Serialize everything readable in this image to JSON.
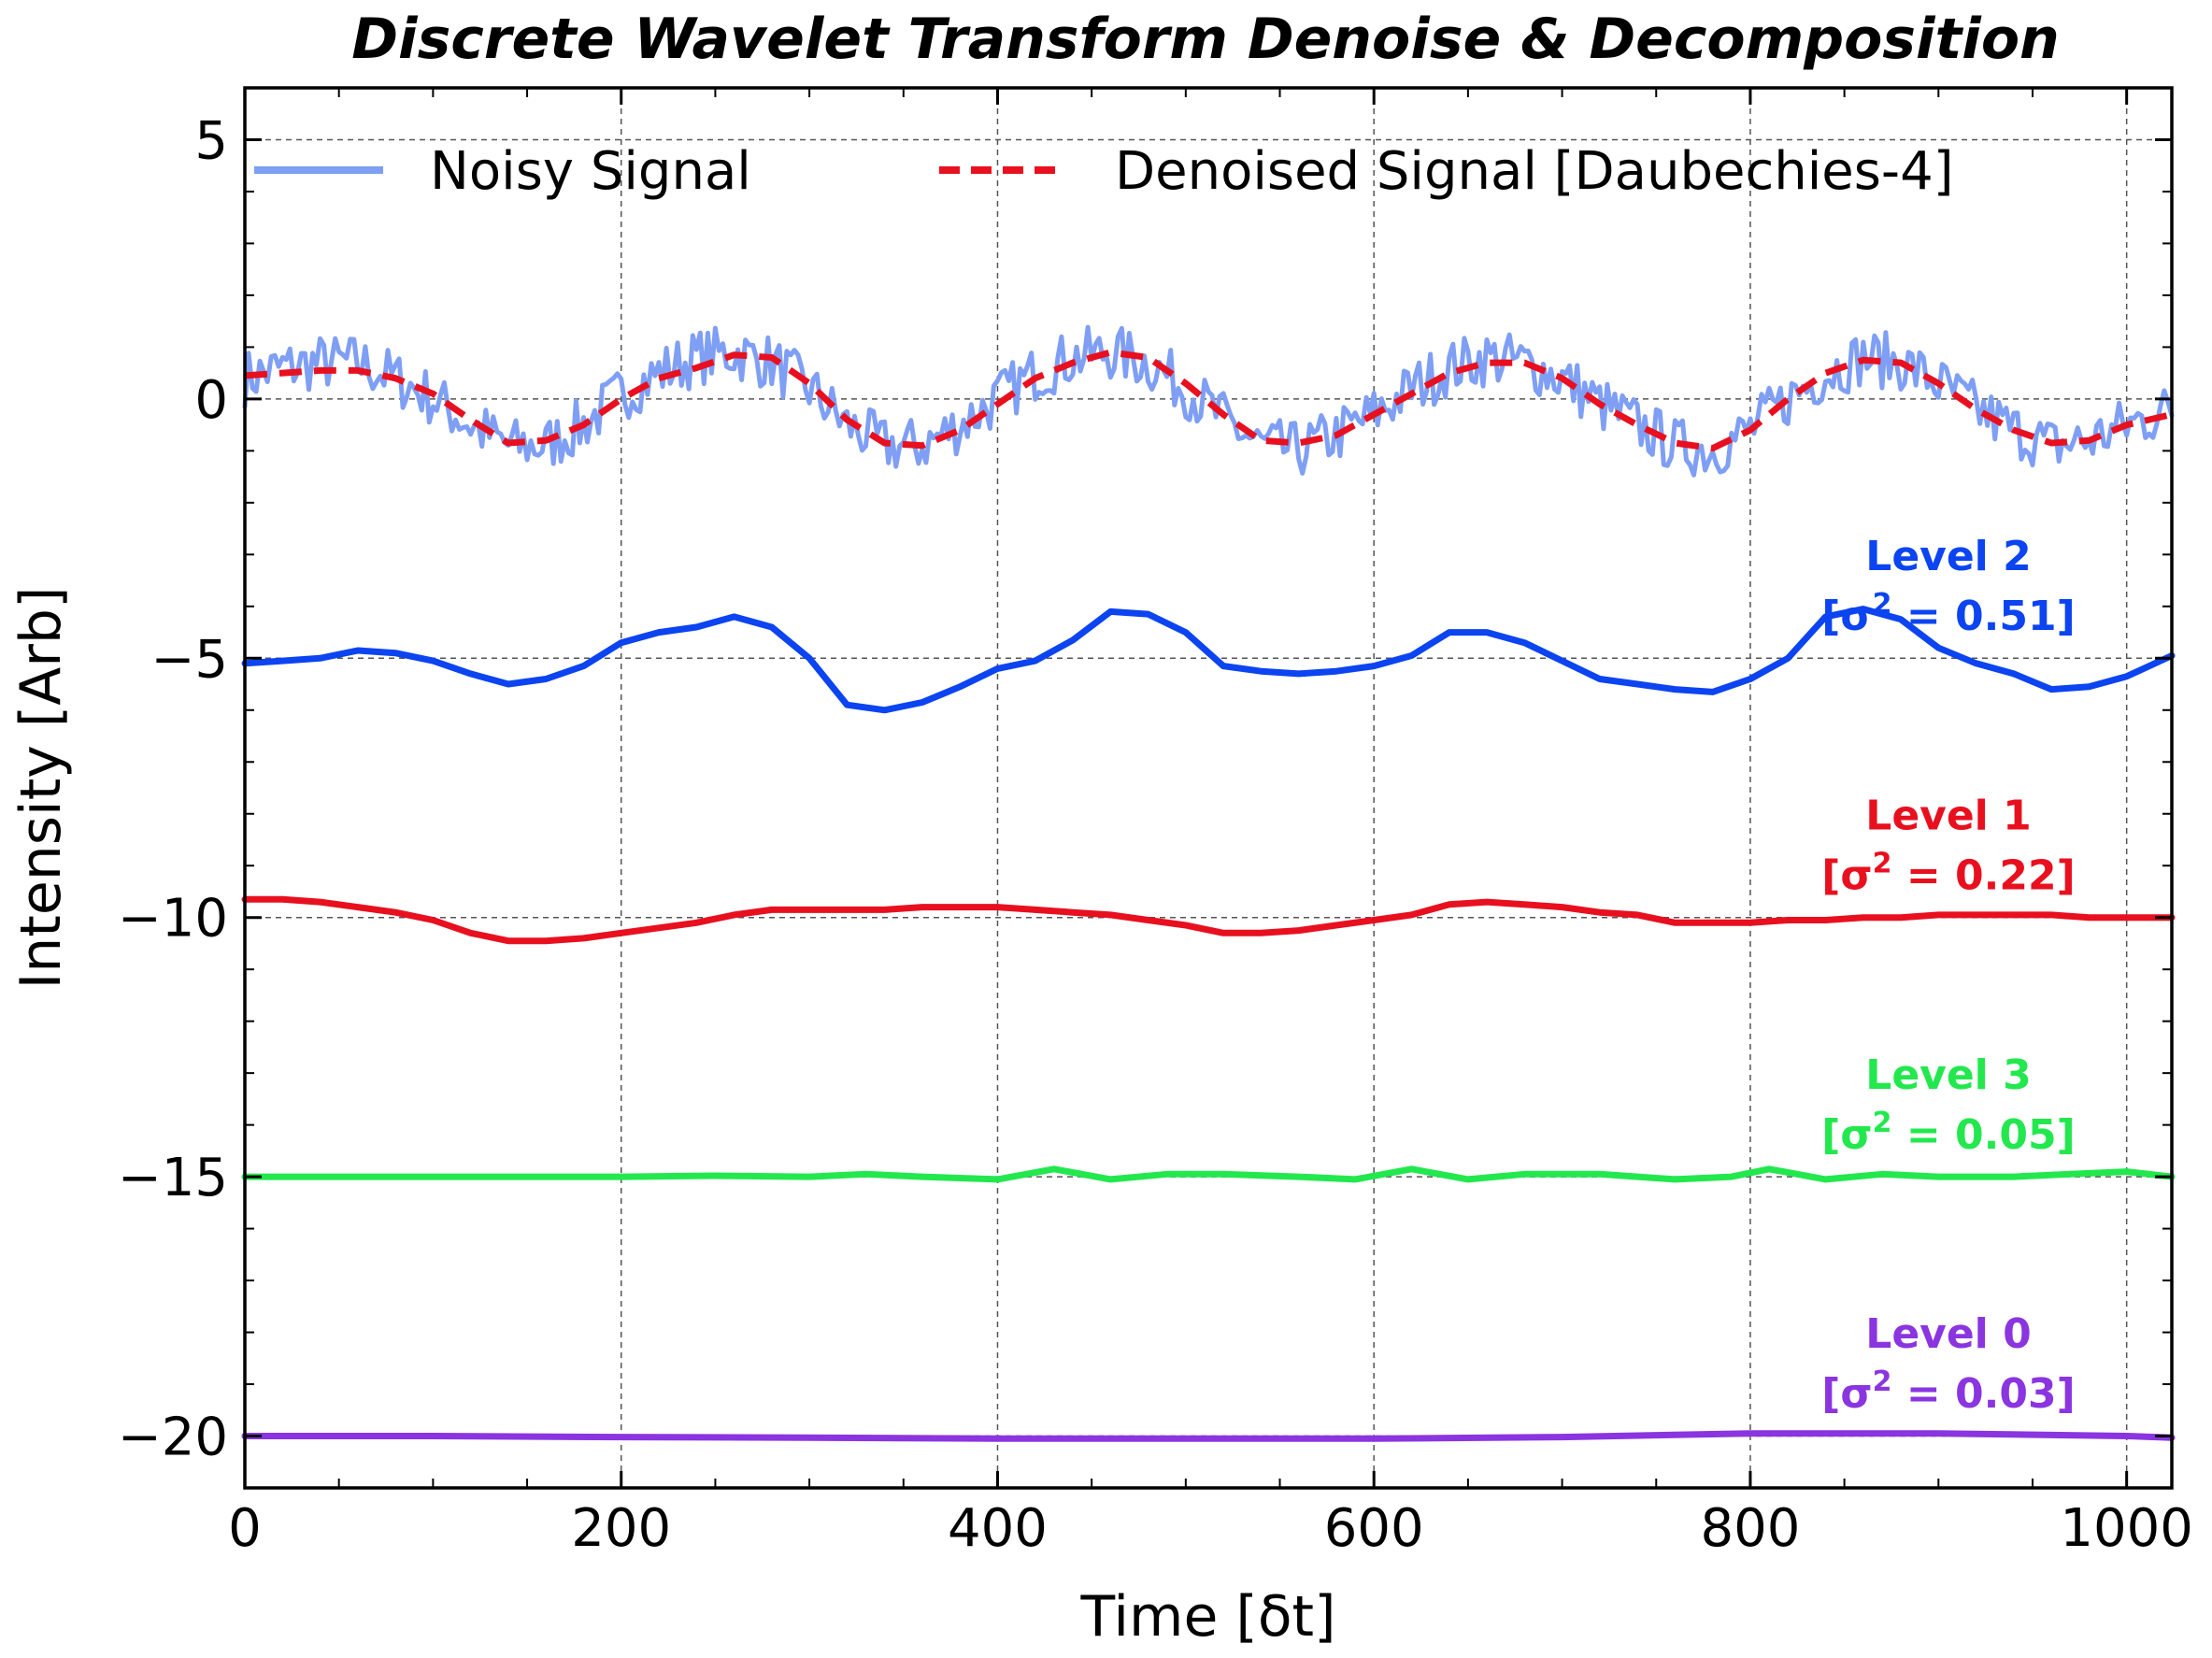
{
  "chart_data": {
    "type": "line",
    "title": "Discrete Wavelet Transform Denoise & Decomposition",
    "xlabel": "Time [δt]",
    "ylabel": "Intensity [Arb]",
    "xlim": [
      0,
      1024
    ],
    "ylim": [
      -21,
      6
    ],
    "xticks": [
      0,
      200,
      400,
      600,
      800,
      1000
    ],
    "yticks": [
      5,
      0,
      -5,
      -10,
      -15,
      -20
    ],
    "xtick_labels": [
      "0",
      "200",
      "400",
      "600",
      "800",
      "1000"
    ],
    "ytick_labels": [
      "5",
      "0",
      "−5",
      "−10",
      "−15",
      "−20"
    ],
    "grid": true,
    "legend_position": "top",
    "legend": [
      {
        "label": "Noisy Signal",
        "color": "#7f9ff5",
        "style": "solid"
      },
      {
        "label": "Denoised Signal [Daubechies-4]",
        "color": "#e8101f",
        "style": "dashed"
      }
    ],
    "series": [
      {
        "name": "Noisy Signal",
        "color": "#7f9ff5",
        "noisy": true,
        "x": [
          0,
          20,
          40,
          60,
          80,
          100,
          120,
          140,
          160,
          180,
          200,
          220,
          240,
          260,
          280,
          300,
          320,
          340,
          360,
          380,
          400,
          420,
          440,
          460,
          480,
          500,
          520,
          540,
          560,
          580,
          600,
          620,
          640,
          660,
          680,
          700,
          720,
          740,
          760,
          780,
          800,
          820,
          840,
          860,
          880,
          900,
          920,
          940,
          960,
          980,
          1000,
          1024
        ],
        "values": [
          0.4,
          0.6,
          0.7,
          0.7,
          0.4,
          0.0,
          -0.5,
          -0.9,
          -0.9,
          -0.5,
          0.1,
          0.5,
          0.8,
          0.9,
          0.7,
          0.2,
          -0.5,
          -0.9,
          -0.9,
          -0.5,
          0.0,
          0.5,
          0.8,
          0.9,
          0.7,
          0.2,
          -0.4,
          -0.9,
          -1.0,
          -0.7,
          -0.3,
          0.2,
          0.6,
          0.8,
          0.7,
          0.4,
          -0.1,
          -0.5,
          -0.9,
          -1.0,
          -0.6,
          0.0,
          0.5,
          0.8,
          0.7,
          0.3,
          -0.2,
          -0.6,
          -0.9,
          -0.8,
          -0.5,
          -0.2
        ]
      },
      {
        "name": "Denoised Signal [Daubechies-4]",
        "color": "#e8101f",
        "x": [
          0,
          20,
          40,
          60,
          80,
          100,
          120,
          140,
          160,
          180,
          200,
          220,
          240,
          260,
          280,
          300,
          320,
          340,
          360,
          380,
          400,
          420,
          440,
          460,
          480,
          500,
          520,
          540,
          560,
          580,
          600,
          620,
          640,
          660,
          680,
          700,
          720,
          740,
          760,
          780,
          800,
          820,
          840,
          860,
          880,
          900,
          920,
          940,
          960,
          980,
          1000,
          1024
        ],
        "values": [
          0.45,
          0.5,
          0.55,
          0.55,
          0.4,
          0.1,
          -0.4,
          -0.85,
          -0.8,
          -0.5,
          0.0,
          0.4,
          0.6,
          0.85,
          0.8,
          0.3,
          -0.4,
          -0.85,
          -0.9,
          -0.6,
          -0.1,
          0.4,
          0.7,
          0.9,
          0.8,
          0.3,
          -0.3,
          -0.8,
          -0.85,
          -0.7,
          -0.3,
          0.1,
          0.5,
          0.7,
          0.7,
          0.4,
          -0.1,
          -0.5,
          -0.85,
          -0.95,
          -0.6,
          0.0,
          0.5,
          0.75,
          0.7,
          0.3,
          -0.2,
          -0.6,
          -0.85,
          -0.8,
          -0.5,
          -0.3
        ]
      },
      {
        "name": "Level 2",
        "color": "#0b44f0",
        "x": [
          0,
          20,
          40,
          60,
          80,
          100,
          120,
          140,
          160,
          180,
          200,
          220,
          240,
          260,
          280,
          300,
          320,
          340,
          360,
          380,
          400,
          420,
          440,
          460,
          480,
          500,
          520,
          540,
          560,
          580,
          600,
          620,
          640,
          660,
          680,
          700,
          720,
          740,
          760,
          780,
          800,
          820,
          840,
          860,
          880,
          900,
          920,
          940,
          960,
          980,
          1000,
          1024
        ],
        "values": [
          -5.1,
          -5.05,
          -5.0,
          -4.85,
          -4.9,
          -5.05,
          -5.3,
          -5.5,
          -5.4,
          -5.15,
          -4.7,
          -4.5,
          -4.4,
          -4.2,
          -4.4,
          -5.0,
          -5.9,
          -6.0,
          -5.85,
          -5.55,
          -5.2,
          -5.05,
          -4.65,
          -4.1,
          -4.15,
          -4.5,
          -5.15,
          -5.25,
          -5.3,
          -5.25,
          -5.15,
          -4.95,
          -4.5,
          -4.5,
          -4.7,
          -5.05,
          -5.4,
          -5.5,
          -5.6,
          -5.65,
          -5.4,
          -5.0,
          -4.2,
          -4.05,
          -4.25,
          -4.8,
          -5.1,
          -5.3,
          -5.6,
          -5.55,
          -5.35,
          -4.95
        ]
      },
      {
        "name": "Level 1",
        "color": "#e8101f",
        "x": [
          0,
          20,
          40,
          60,
          80,
          100,
          120,
          140,
          160,
          180,
          200,
          220,
          240,
          260,
          280,
          300,
          320,
          340,
          360,
          380,
          400,
          420,
          440,
          460,
          480,
          500,
          520,
          540,
          560,
          580,
          600,
          620,
          640,
          660,
          680,
          700,
          720,
          740,
          760,
          780,
          800,
          820,
          840,
          860,
          880,
          900,
          920,
          940,
          960,
          980,
          1000,
          1024
        ],
        "values": [
          -9.65,
          -9.65,
          -9.7,
          -9.8,
          -9.9,
          -10.05,
          -10.3,
          -10.45,
          -10.45,
          -10.4,
          -10.3,
          -10.2,
          -10.1,
          -9.95,
          -9.85,
          -9.85,
          -9.85,
          -9.85,
          -9.8,
          -9.8,
          -9.8,
          -9.85,
          -9.9,
          -9.95,
          -10.05,
          -10.15,
          -10.3,
          -10.3,
          -10.25,
          -10.15,
          -10.05,
          -9.95,
          -9.75,
          -9.7,
          -9.75,
          -9.8,
          -9.9,
          -9.95,
          -10.1,
          -10.1,
          -10.1,
          -10.05,
          -10.05,
          -10.0,
          -10.0,
          -9.95,
          -9.95,
          -9.95,
          -9.95,
          -10.0,
          -10.0,
          -10.0
        ]
      },
      {
        "name": "Level 3",
        "color": "#22e84e",
        "x": [
          0,
          50,
          100,
          150,
          200,
          250,
          300,
          330,
          360,
          400,
          430,
          460,
          490,
          520,
          560,
          590,
          620,
          650,
          680,
          720,
          760,
          790,
          810,
          840,
          870,
          900,
          940,
          970,
          1000,
          1024
        ],
        "values": [
          -15.0,
          -15.0,
          -15.0,
          -15.0,
          -15.0,
          -14.98,
          -15.0,
          -14.95,
          -15.0,
          -15.05,
          -14.85,
          -15.05,
          -14.95,
          -14.95,
          -15.0,
          -15.05,
          -14.85,
          -15.05,
          -14.95,
          -14.95,
          -15.05,
          -15.0,
          -14.85,
          -15.05,
          -14.95,
          -15.0,
          -15.0,
          -14.95,
          -14.9,
          -15.0
        ]
      },
      {
        "name": "Level 0",
        "color": "#8a35e0",
        "x": [
          0,
          100,
          200,
          300,
          400,
          500,
          600,
          700,
          800,
          900,
          1000,
          1024
        ],
        "values": [
          -20.0,
          -20.0,
          -20.02,
          -20.03,
          -20.05,
          -20.05,
          -20.05,
          -20.02,
          -19.95,
          -19.95,
          -20.0,
          -20.03
        ]
      }
    ],
    "annotations": [
      {
        "line1": "Level 2",
        "var": "0.51",
        "color": "#0b44f0",
        "y": -3.3
      },
      {
        "line1": "Level 1",
        "var": "0.22",
        "color": "#e8101f",
        "y": -8.3
      },
      {
        "line1": "Level 3",
        "var": "0.05",
        "color": "#22e84e",
        "y": -13.3
      },
      {
        "line1": "Level 0",
        "var": "0.03",
        "color": "#8a35e0",
        "y": -18.3
      }
    ]
  }
}
